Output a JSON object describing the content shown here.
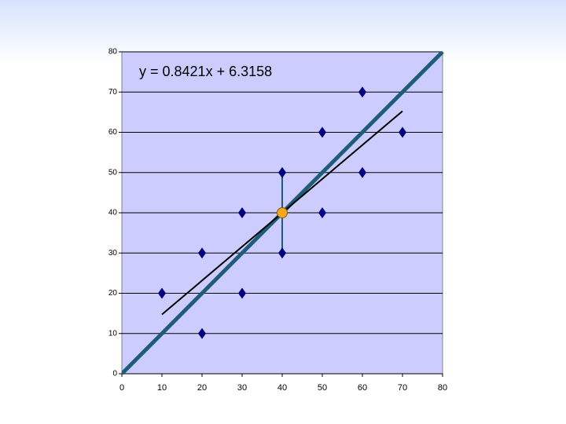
{
  "chart_data": {
    "type": "scatter",
    "points": {
      "x": [
        10,
        20,
        20,
        30,
        30,
        40,
        40,
        50,
        50,
        60,
        60,
        70
      ],
      "y": [
        20,
        30,
        10,
        40,
        20,
        50,
        30,
        60,
        40,
        70,
        50,
        60
      ],
      "color": "#000080"
    },
    "mean_point": {
      "x": 40,
      "y": 40,
      "range": [
        30,
        50
      ],
      "color": "#f5a623",
      "range_color": "#1f5c7a"
    },
    "trendline": {
      "slope": 0.8421,
      "intercept": 6.3158,
      "label": "y = 0.8421x + 6.3158",
      "color": "#000000"
    },
    "reference_line": {
      "slope": 1,
      "intercept": 0,
      "color": "#1f5c7a"
    },
    "xlim": [
      0,
      80
    ],
    "ylim": [
      0,
      80
    ],
    "xticks": [
      0,
      10,
      20,
      30,
      40,
      50,
      60,
      70,
      80
    ],
    "yticks": [
      0,
      10,
      20,
      30,
      40,
      50,
      60,
      70,
      80
    ],
    "grid": true,
    "plot_background": "#ccccff"
  }
}
